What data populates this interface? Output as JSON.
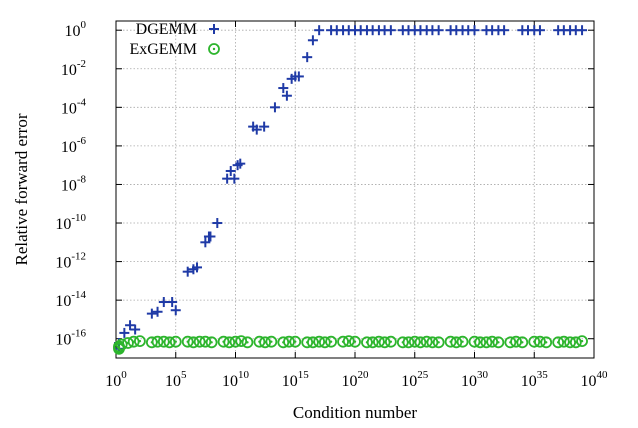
{
  "chart_data": {
    "type": "scatter",
    "xlabel": "Condition number",
    "ylabel": "Relative forward error",
    "x_scale": "log",
    "y_scale": "log",
    "xlim": [
      1,
      1e+40
    ],
    "ylim": [
      1e-17,
      3
    ],
    "grid": true,
    "legend_position": "top-left",
    "x_ticks": [
      {
        "base": "10",
        "exp": "0",
        "value": 1
      },
      {
        "base": "10",
        "exp": "5",
        "value": 100000.0
      },
      {
        "base": "10",
        "exp": "10",
        "value": 10000000000.0
      },
      {
        "base": "10",
        "exp": "15",
        "value": 1000000000000000.0
      },
      {
        "base": "10",
        "exp": "20",
        "value": 1e+20
      },
      {
        "base": "10",
        "exp": "25",
        "value": 1e+25
      },
      {
        "base": "10",
        "exp": "30",
        "value": 1e+30
      },
      {
        "base": "10",
        "exp": "35",
        "value": 1e+35
      },
      {
        "base": "10",
        "exp": "40",
        "value": 1e+40
      }
    ],
    "y_ticks": [
      {
        "base": "10",
        "exp": "0",
        "value": 1
      },
      {
        "base": "10",
        "exp": "-2",
        "value": 0.01
      },
      {
        "base": "10",
        "exp": "-4",
        "value": 0.0001
      },
      {
        "base": "10",
        "exp": "-6",
        "value": 1e-06
      },
      {
        "base": "10",
        "exp": "-8",
        "value": 1e-08
      },
      {
        "base": "10",
        "exp": "-10",
        "value": 1e-10
      },
      {
        "base": "10",
        "exp": "-12",
        "value": 1e-12
      },
      {
        "base": "10",
        "exp": "-14",
        "value": 1e-14
      },
      {
        "base": "10",
        "exp": "-16",
        "value": 1e-16
      }
    ],
    "series": [
      {
        "name": "DGEMM",
        "marker": "plus",
        "color": "#1f3aa6",
        "points": [
          [
            0.1,
            3e-17
          ],
          [
            1.0,
            6e-17
          ],
          [
            5.0,
            2e-16
          ],
          [
            15.0,
            5e-16
          ],
          [
            40.0,
            3e-16
          ],
          [
            1000.0,
            2e-15
          ],
          [
            3000.0,
            2.5e-15
          ],
          [
            10000.0,
            8e-15
          ],
          [
            100000.0,
            3e-15
          ],
          [
            50000.0,
            8e-15
          ],
          [
            1000000.0,
            3e-13
          ],
          [
            3000000.0,
            4e-13
          ],
          [
            6000000.0,
            5e-13
          ],
          [
            30000000.0,
            1e-11
          ],
          [
            60000000.0,
            2e-11
          ],
          [
            80000000.0,
            2e-11
          ],
          [
            300000000.0,
            1e-10
          ],
          [
            2000000000.0,
            2e-08
          ],
          [
            4000000000.0,
            5e-08
          ],
          [
            8000000000.0,
            2e-08
          ],
          [
            15000000000.0,
            1e-07
          ],
          [
            25000000000.0,
            1.2e-07
          ],
          [
            300000000000.0,
            1e-05
          ],
          [
            600000000000.0,
            7e-06
          ],
          [
            2500000000000.0,
            1e-05
          ],
          [
            20000000000000.0,
            0.0001
          ],
          [
            100000000000000.0,
            0.001
          ],
          [
            200000000000000.0,
            0.0004
          ],
          [
            500000000000000.0,
            0.003
          ],
          [
            1000000000000000.0,
            0.004
          ],
          [
            2000000000000000.0,
            0.004
          ],
          [
            1e+16,
            0.04
          ],
          [
            3e+16,
            0.3
          ],
          [
            1e+17,
            1
          ],
          [
            1e+18,
            1
          ],
          [
            3e+18,
            1
          ],
          [
            1e+19,
            1
          ],
          [
            3e+19,
            1
          ],
          [
            1e+20,
            1
          ],
          [
            3e+20,
            1
          ],
          [
            1e+21,
            1
          ],
          [
            3e+21,
            1
          ],
          [
            1e+22,
            1
          ],
          [
            3e+22,
            1
          ],
          [
            1e+23,
            1
          ],
          [
            1e+24,
            1
          ],
          [
            3e+24,
            1
          ],
          [
            1e+25,
            1
          ],
          [
            3e+25,
            1
          ],
          [
            1e+26,
            1
          ],
          [
            3e+26,
            1
          ],
          [
            1e+27,
            1
          ],
          [
            1e+28,
            1
          ],
          [
            3e+28,
            1
          ],
          [
            1e+29,
            1
          ],
          [
            3e+29,
            1
          ],
          [
            1e+30,
            1
          ],
          [
            1e+31,
            1
          ],
          [
            3e+31,
            1
          ],
          [
            1e+32,
            1
          ],
          [
            3e+32,
            1
          ],
          [
            1e+34,
            1
          ],
          [
            3e+34,
            1
          ],
          [
            1e+35,
            1
          ],
          [
            3e+35,
            1
          ],
          [
            1e+37,
            1
          ],
          [
            3e+37,
            1
          ],
          [
            1e+38,
            1
          ],
          [
            3e+38,
            1
          ],
          [
            1e+39,
            1
          ]
        ]
      },
      {
        "name": "ExGEMM",
        "marker": "circle",
        "color": "#2db52d",
        "points": [
          [
            0.1,
            3e-17
          ],
          [
            0.5,
            3.5e-17
          ],
          [
            1.0,
            4e-17
          ],
          [
            3.0,
            5e-17
          ],
          [
            10.0,
            6e-17
          ],
          [
            30.0,
            7e-17
          ],
          [
            100.0,
            7.5e-17
          ],
          [
            1000.0,
            6.5e-17
          ],
          [
            3000.0,
            7e-17
          ],
          [
            10000.0,
            7e-17
          ],
          [
            30000.0,
            6.5e-17
          ],
          [
            100000.0,
            7e-17
          ],
          [
            1000000.0,
            7e-17
          ],
          [
            3000000.0,
            6.5e-17
          ],
          [
            10000000.0,
            7e-17
          ],
          [
            30000000.0,
            7e-17
          ],
          [
            100000000.0,
            6.5e-17
          ],
          [
            1000000000.0,
            7e-17
          ],
          [
            3000000000.0,
            6.5e-17
          ],
          [
            10000000000.0,
            7e-17
          ],
          [
            30000000000.0,
            7.5e-17
          ],
          [
            100000000000.0,
            6.5e-17
          ],
          [
            1000000000000.0,
            7e-17
          ],
          [
            3000000000000.0,
            6.5e-17
          ],
          [
            10000000000000.0,
            7e-17
          ],
          [
            100000000000000.0,
            6.5e-17
          ],
          [
            300000000000000.0,
            7e-17
          ],
          [
            1000000000000000.0,
            7e-17
          ],
          [
            1e+16,
            6.5e-17
          ],
          [
            3e+16,
            6.5e-17
          ],
          [
            1e+17,
            7e-17
          ],
          [
            3e+17,
            6.5e-17
          ],
          [
            1e+18,
            7e-17
          ],
          [
            1e+19,
            7e-17
          ],
          [
            3e+19,
            7.5e-17
          ],
          [
            1e+20,
            7e-17
          ],
          [
            1e+21,
            6.5e-17
          ],
          [
            3e+21,
            6.5e-17
          ],
          [
            1e+22,
            7e-17
          ],
          [
            3e+22,
            6.5e-17
          ],
          [
            1e+23,
            7e-17
          ],
          [
            1e+24,
            6.5e-17
          ],
          [
            3e+24,
            6.5e-17
          ],
          [
            1e+25,
            7e-17
          ],
          [
            3e+25,
            6.5e-17
          ],
          [
            1e+26,
            7e-17
          ],
          [
            3e+26,
            6.5e-17
          ],
          [
            1e+27,
            6.5e-17
          ],
          [
            1e+28,
            7e-17
          ],
          [
            3e+28,
            6.5e-17
          ],
          [
            1e+29,
            7e-17
          ],
          [
            1e+30,
            7e-17
          ],
          [
            3e+30,
            6.5e-17
          ],
          [
            1e+31,
            6.5e-17
          ],
          [
            3e+31,
            7e-17
          ],
          [
            1e+32,
            6.5e-17
          ],
          [
            1e+33,
            6.5e-17
          ],
          [
            3e+33,
            7e-17
          ],
          [
            1e+34,
            6.5e-17
          ],
          [
            1e+35,
            7e-17
          ],
          [
            3e+35,
            7e-17
          ],
          [
            1e+36,
            6.5e-17
          ],
          [
            1e+37,
            6.5e-17
          ],
          [
            3e+37,
            7e-17
          ],
          [
            1e+38,
            6.5e-17
          ],
          [
            3e+38,
            6.5e-17
          ],
          [
            1e+39,
            7.5e-17
          ]
        ]
      }
    ]
  }
}
